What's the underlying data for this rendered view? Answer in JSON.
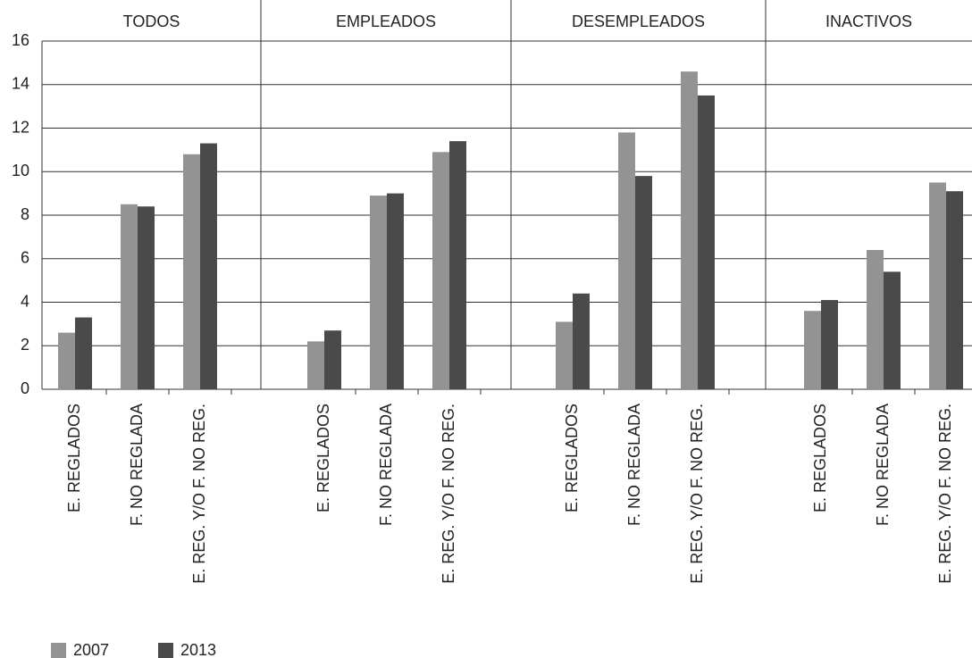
{
  "chart_data": {
    "type": "bar",
    "categories": [
      "E. REGLADOS",
      "F. NO REGLADA",
      "E. REG. Y/O F. NO REG."
    ],
    "series": [
      {
        "name": "2007",
        "color": "#939393"
      },
      {
        "name": "2013",
        "color": "#4a4a4a"
      }
    ],
    "panels": [
      {
        "title": "TODOS",
        "series": [
          {
            "values": [
              2.6,
              8.5,
              10.8
            ]
          },
          {
            "values": [
              3.3,
              8.4,
              11.3
            ]
          }
        ]
      },
      {
        "title": "EMPLEADOS",
        "series": [
          {
            "values": [
              2.2,
              8.9,
              10.9
            ]
          },
          {
            "values": [
              2.7,
              9.0,
              11.4
            ]
          }
        ]
      },
      {
        "title": "DESEMPLEADOS",
        "series": [
          {
            "values": [
              3.1,
              11.8,
              14.6
            ]
          },
          {
            "values": [
              4.4,
              9.8,
              13.5
            ]
          }
        ]
      },
      {
        "title": "INACTIVOS",
        "series": [
          {
            "values": [
              3.6,
              6.4,
              9.5
            ]
          },
          {
            "values": [
              4.1,
              5.4,
              9.1
            ]
          }
        ]
      }
    ],
    "ylim": [
      0,
      16
    ],
    "yticks": [
      0,
      2,
      4,
      6,
      8,
      10,
      12,
      14,
      16
    ],
    "grid": true
  }
}
